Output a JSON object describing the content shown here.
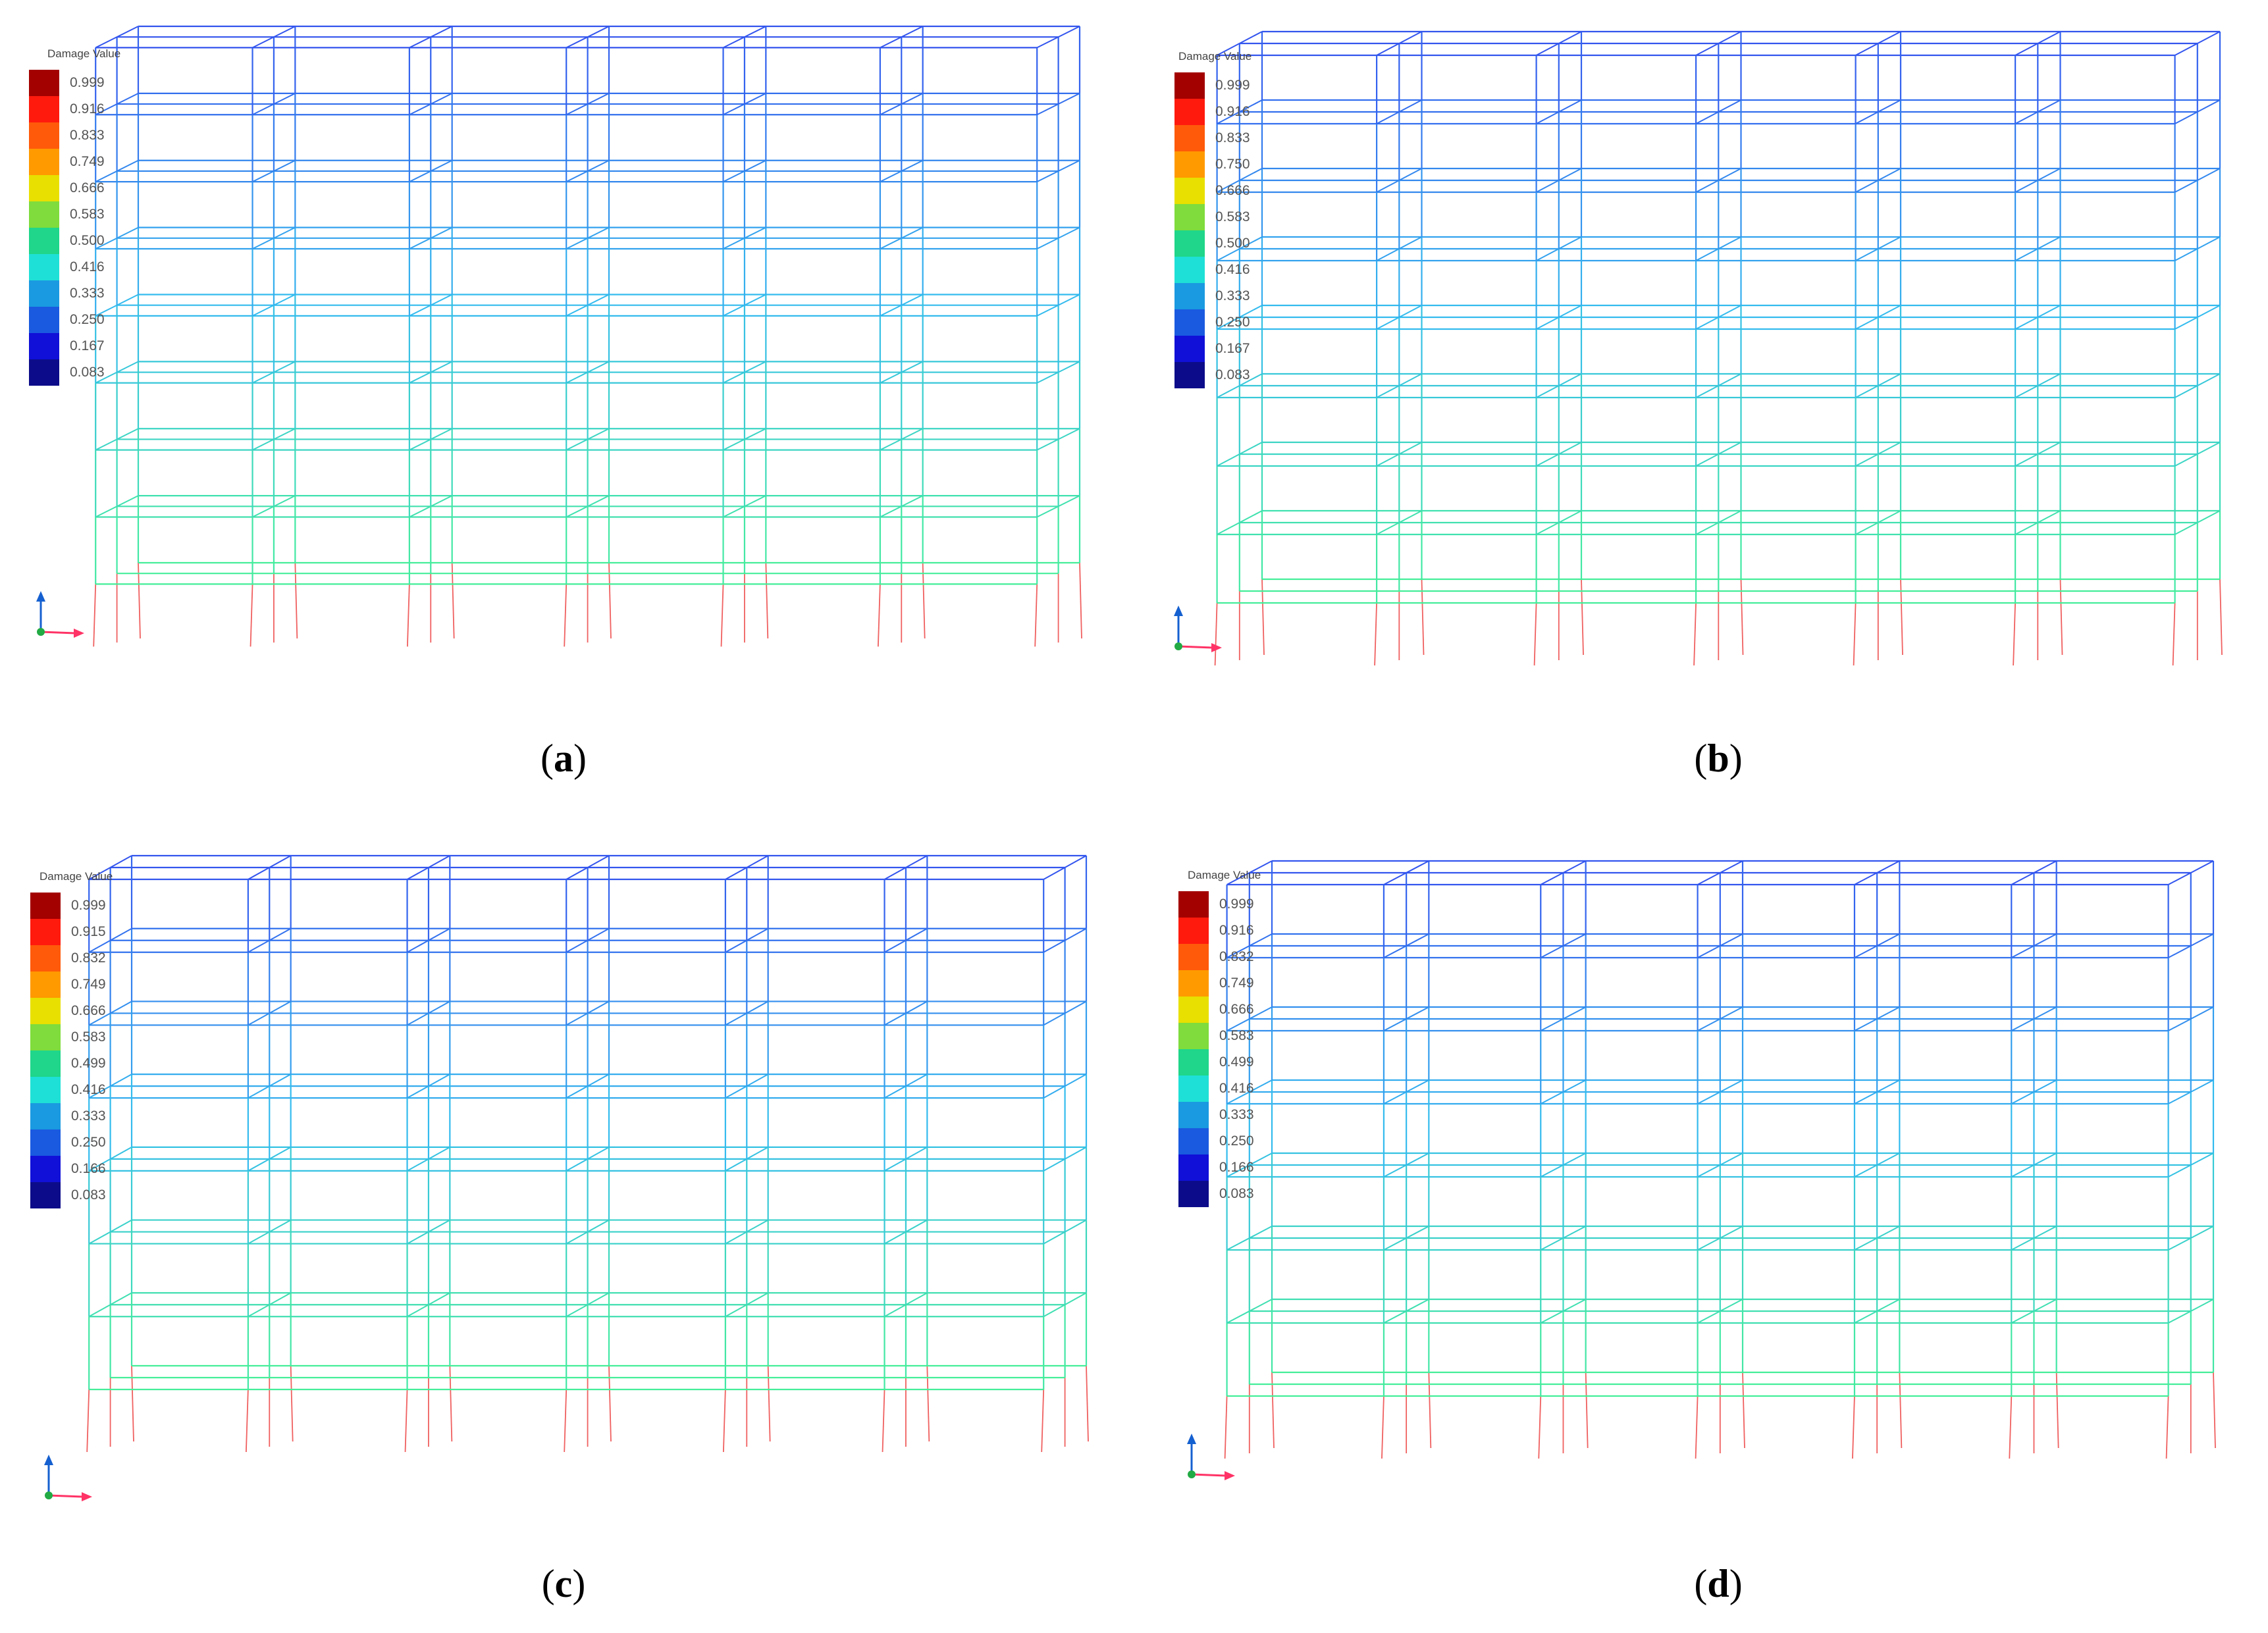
{
  "panels": [
    {
      "id": "a",
      "caption_letter": "a",
      "legend_title": "Damage Value",
      "legend_values": [
        "0.999",
        "0.916",
        "0.833",
        "0.749",
        "0.666",
        "0.583",
        "0.500",
        "0.416",
        "0.333",
        "0.250",
        "0.167",
        "0.083"
      ],
      "braced": false
    },
    {
      "id": "b",
      "caption_letter": "b",
      "legend_title": "Damage Value",
      "legend_values": [
        "0.999",
        "0.916",
        "0.833",
        "0.750",
        "0.666",
        "0.583",
        "0.500",
        "0.416",
        "0.333",
        "0.250",
        "0.167",
        "0.083"
      ],
      "braced": false
    },
    {
      "id": "c",
      "caption_letter": "c",
      "legend_title": "Damage Value",
      "legend_values": [
        "0.999",
        "0.915",
        "0.832",
        "0.749",
        "0.666",
        "0.583",
        "0.499",
        "0.416",
        "0.333",
        "0.250",
        "0.166",
        "0.083"
      ],
      "braced": true
    },
    {
      "id": "d",
      "caption_letter": "d",
      "legend_title": "Damage Value",
      "legend_values": [
        "0.999",
        "0.916",
        "0.832",
        "0.749",
        "0.666",
        "0.583",
        "0.499",
        "0.416",
        "0.333",
        "0.250",
        "0.166",
        "0.083"
      ],
      "braced": true
    }
  ],
  "legend_colors": [
    "#a30000",
    "#ff1a0d",
    "#ff5a0a",
    "#ff9a00",
    "#e8e000",
    "#7fdc3c",
    "#1fd68a",
    "#1fe0d6",
    "#1a9ae0",
    "#1a5ae0",
    "#1010d8",
    "#0c0c8a"
  ],
  "frame_colors": {
    "top": "#3355ee",
    "mid": "#33bbee",
    "bottom": "#44ee99",
    "base_columns": "#f06060",
    "brace": "#4422cc"
  },
  "axis_colors": {
    "vertical": "#1560d0",
    "horizontal": "#ff3366",
    "origin": "#22aa44"
  }
}
